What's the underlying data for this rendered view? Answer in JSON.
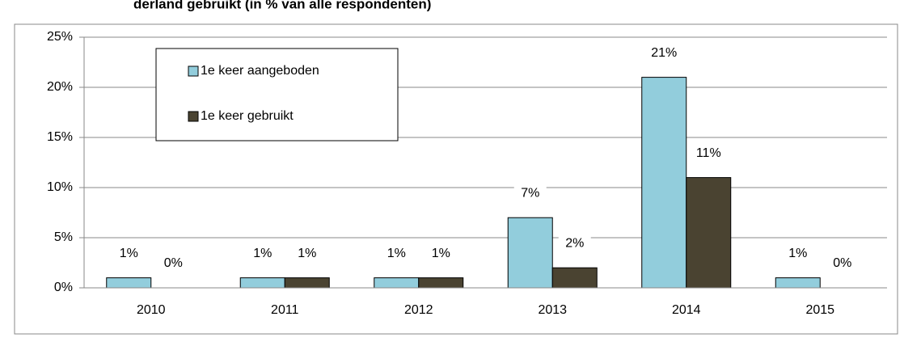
{
  "chart_data": {
    "type": "bar",
    "title": "derland gebruikt (in % van alle respondenten)",
    "categories": [
      "2010",
      "2011",
      "2012",
      "2013",
      "2014",
      "2015"
    ],
    "series": [
      {
        "name": "1e keer aangeboden",
        "color": "#92cddc",
        "values": [
          1,
          1,
          1,
          7,
          21,
          1
        ],
        "value_labels": [
          "1%",
          "1%",
          "1%",
          "7%",
          "21%",
          "1%"
        ]
      },
      {
        "name": "1e keer gebruikt",
        "color": "#4a4331",
        "values": [
          0,
          1,
          1,
          2,
          11,
          0
        ],
        "value_labels": [
          "0%",
          "1%",
          "1%",
          "2%",
          "11%",
          "0%"
        ]
      }
    ],
    "ylim": [
      0,
      25
    ],
    "yticks": [
      {
        "value": 0,
        "label": "0%"
      },
      {
        "value": 5,
        "label": "5%"
      },
      {
        "value": 10,
        "label": "10%"
      },
      {
        "value": 15,
        "label": "15%"
      },
      {
        "value": 20,
        "label": "20%"
      },
      {
        "value": 25,
        "label": "25%"
      }
    ],
    "grid": true
  }
}
